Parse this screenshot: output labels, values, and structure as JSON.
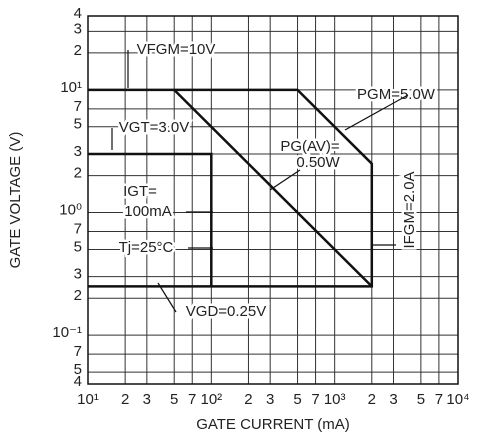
{
  "chart_data": {
    "type": "line",
    "x_label": "GATE CURRENT (mA)",
    "y_label": "GATE VOLTAGE (V)",
    "log_x": true,
    "log_y": true,
    "grid": true,
    "color": "#111111",
    "xlim": [
      10,
      10000
    ],
    "ylim": [
      0.04,
      40
    ],
    "xticks": [
      {
        "value": 10,
        "label": "10¹"
      },
      {
        "value": 20,
        "label": "2"
      },
      {
        "value": 30,
        "label": "3"
      },
      {
        "value": 50,
        "label": "5"
      },
      {
        "value": 70,
        "label": "7"
      },
      {
        "value": 100,
        "label": "10²"
      },
      {
        "value": 200,
        "label": "2"
      },
      {
        "value": 300,
        "label": "3"
      },
      {
        "value": 500,
        "label": "5"
      },
      {
        "value": 700,
        "label": "7"
      },
      {
        "value": 1000,
        "label": "10³"
      },
      {
        "value": 2000,
        "label": "2"
      },
      {
        "value": 3000,
        "label": "3"
      },
      {
        "value": 5000,
        "label": "5"
      },
      {
        "value": 7000,
        "label": "7"
      },
      {
        "value": 10000,
        "label": "10⁴"
      }
    ],
    "yticks": [
      {
        "value": 40,
        "label": "4"
      },
      {
        "value": 30,
        "label": "3"
      },
      {
        "value": 20,
        "label": "2"
      },
      {
        "value": 10,
        "label": "10¹"
      },
      7,
      5,
      3,
      2,
      {
        "value": 1,
        "label": "10⁰"
      },
      {
        "value": 0.7,
        "label": "7"
      },
      {
        "value": 0.5,
        "label": "5"
      },
      {
        "value": 0.3,
        "label": "3"
      },
      {
        "value": 0.2,
        "label": "2"
      },
      {
        "value": 0.1,
        "label": "10⁻¹"
      },
      {
        "value": 0.07,
        "label": "7"
      },
      {
        "value": 0.05,
        "label": "5"
      },
      {
        "value": 0.04,
        "label": "4"
      }
    ],
    "series": [
      {
        "x": [
          10,
          500,
          2000,
          2000,
          10
        ],
        "values": [
          10,
          10,
          2.5,
          0.25,
          0.25
        ]
      },
      {
        "x": [
          10,
          100,
          100
        ],
        "values": [
          3,
          3,
          0.25
        ]
      },
      {
        "x": [
          50,
          2000
        ],
        "values": [
          10,
          0.25
        ]
      }
    ],
    "annotations": [
      "VFGM=10V",
      "PGM=5.0W",
      "VGT=3.0V",
      "PG(AV)=",
      "0.50W",
      "IGT=",
      "100mA",
      "Tj=25°C",
      "IFGM=2.0A",
      "VGD=0.25V"
    ]
  }
}
